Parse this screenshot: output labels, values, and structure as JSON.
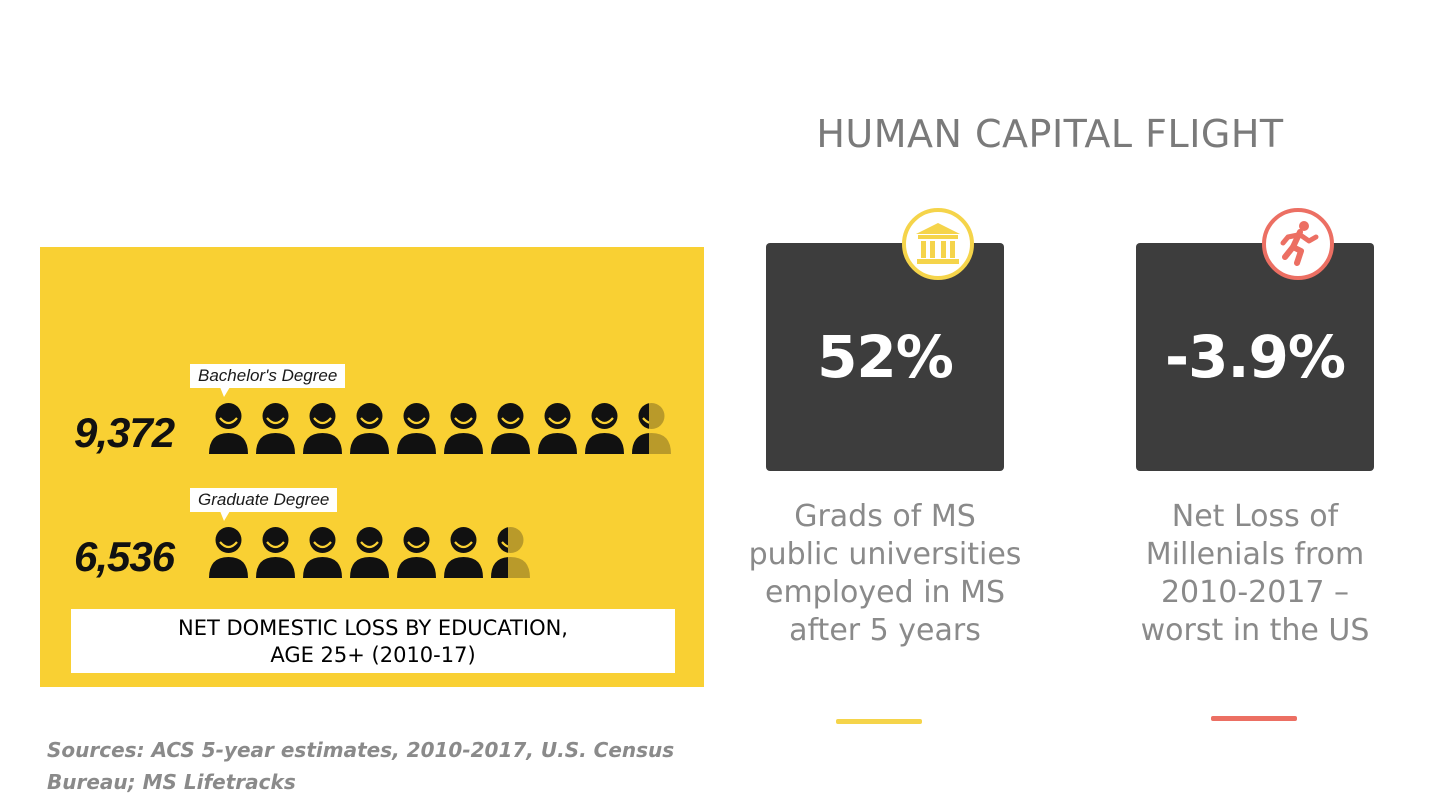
{
  "title": "HUMAN CAPITAL FLIGHT",
  "infographic": {
    "rows": [
      {
        "label": "Bachelor's Degree",
        "value": "9,372",
        "count": 9372,
        "icons_full": 9,
        "icons_partial": 1
      },
      {
        "label": "Graduate Degree",
        "value": "6,536",
        "count": 6536,
        "icons_full": 6,
        "icons_partial": 1
      }
    ],
    "caption_line1": "NET DOMESTIC LOSS BY EDUCATION,",
    "caption_line2": "AGE 25+ (2010-17)",
    "colors": {
      "background": "#f9d033",
      "icon": "#111111"
    }
  },
  "sources_line1": "Sources: ACS 5-year estimates, 2010-2017, U.S. Census",
  "sources_line2": "Bureau; MS Lifetracks",
  "stats": [
    {
      "icon": "university-icon",
      "value": "52%",
      "desc_lines": [
        "Grads of MS",
        "public universities",
        "employed in MS",
        "after 5 years"
      ],
      "accent": "#f5d44a"
    },
    {
      "icon": "running-person-icon",
      "value": "-3.9%",
      "desc_lines": [
        "Net Loss of",
        "Millenials from",
        "2010-2017 –",
        "worst in the US"
      ],
      "accent": "#ec6f63"
    }
  ]
}
